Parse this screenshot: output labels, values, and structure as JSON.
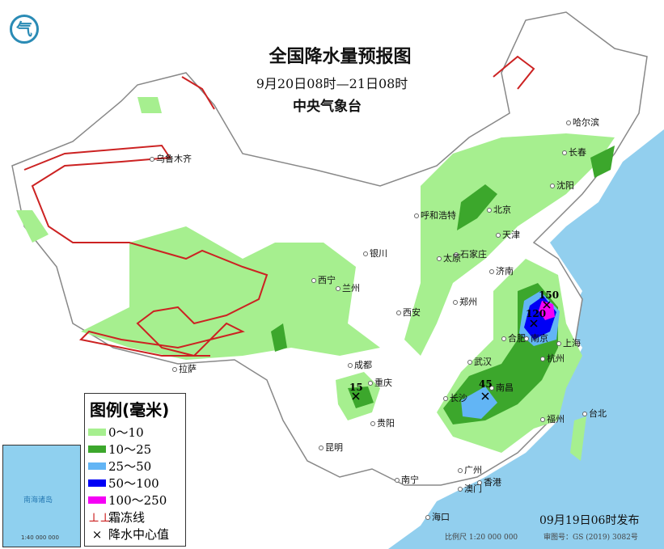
{
  "header": {
    "title": "全国降水量预报图",
    "period": "9月20日08时—21日08时",
    "issuer": "中央气象台",
    "logo": "cma-logo-icon"
  },
  "colors": {
    "sea": "#92cfee",
    "land": "#ffffff",
    "rain_0_10": "#a6ef8f",
    "rain_10_25": "#3ca72c",
    "rain_25_50": "#62b5f5",
    "rain_50_100": "#0000f5",
    "rain_100_250": "#f500f5",
    "frost_line": "#cc2222",
    "boundary": "#999999"
  },
  "legend": {
    "title": "图例(毫米)",
    "items": [
      {
        "label": "0～10",
        "color": "#a6ef8f"
      },
      {
        "label": "10～25",
        "color": "#3ca72c"
      },
      {
        "label": "25～50",
        "color": "#62b5f5"
      },
      {
        "label": "50～100",
        "color": "#0000f5"
      },
      {
        "label": "100～250",
        "color": "#f500f5"
      },
      {
        "label": "霜冻线",
        "symbol": "frost-line-icon"
      },
      {
        "label": "降水中心值",
        "symbol": "cross-icon"
      }
    ]
  },
  "cities": [
    "乌鲁木齐",
    "哈尔滨",
    "长春",
    "沈阳",
    "呼和浩特",
    "北京",
    "天津",
    "石家庄",
    "太原",
    "济南",
    "银川",
    "西宁",
    "兰州",
    "西安",
    "郑州",
    "合肥",
    "南京",
    "上海",
    "武汉",
    "杭州",
    "成都",
    "重庆",
    "长沙",
    "南昌",
    "拉萨",
    "贵阳",
    "昆明",
    "福州",
    "台北",
    "南宁",
    "广州",
    "澳门",
    "香港",
    "海口"
  ],
  "rain_centers": [
    {
      "value": "150"
    },
    {
      "value": "120"
    },
    {
      "value": "45"
    },
    {
      "value": "15"
    }
  ],
  "inset": {
    "label": "南海诸岛",
    "scale": "1:40 000 000"
  },
  "footer": {
    "published": "09月19日06时发布",
    "scale": "比例尺 1:20 000 000",
    "map_number": "审图号：GS (2019) 3082号"
  }
}
